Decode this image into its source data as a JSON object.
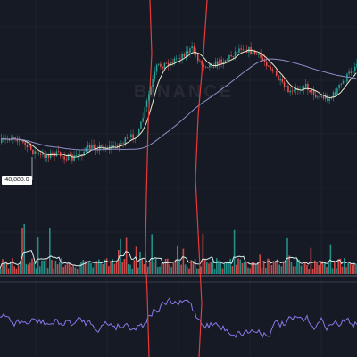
{
  "price_marker": {
    "label": "48,888.0"
  },
  "watermark": {
    "text": "BINANCE"
  },
  "colors": {
    "background": "#161a25",
    "grid": "#262a35",
    "up": "#26a69a",
    "down": "#ef5350",
    "ma_fast": "#e8e8c8",
    "ma_slow": "#8e8ec8",
    "volume_ma": "#d8f0f0",
    "oscillator": "#8878e8",
    "drawing": "#e83a3a",
    "separator": "#3a3e4a"
  },
  "chart_data": {
    "type": "candlestick",
    "panes": [
      "price",
      "volume",
      "oscillator"
    ],
    "price_marker": 48888.0,
    "grid": true,
    "annotations": [
      "two vertical hand-drawn red lines"
    ]
  }
}
